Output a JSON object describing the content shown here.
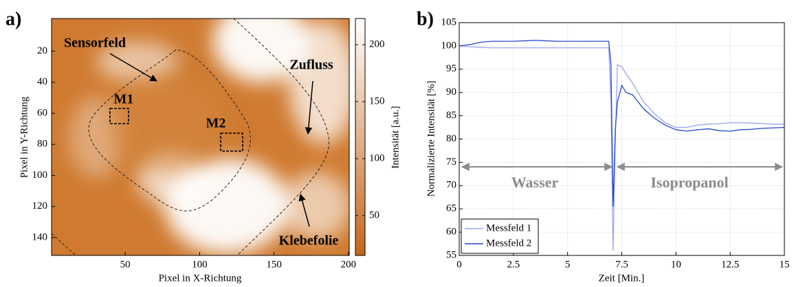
{
  "chart_data": [
    {
      "type": "image",
      "label": "a)",
      "xlabel": "Pixel in X-Richtung",
      "ylabel": "Pixel in Y-Richtung",
      "xlim": [
        0.5,
        200.5
      ],
      "ylim": [
        -1,
        151.5
      ],
      "y_reversed": true,
      "xticks": [
        50,
        100,
        150,
        200
      ],
      "yticks": [
        20,
        40,
        60,
        80,
        100,
        120,
        140
      ],
      "colorbar": {
        "label": "Intensität [a.u.]",
        "clim": [
          15,
          223
        ],
        "ticks": [
          50,
          100,
          150,
          200
        ],
        "colors": [
          "#c4661a",
          "#ffffff"
        ]
      },
      "annotations": [
        "Sensorfeld",
        "M1",
        "M2",
        "Zufluss",
        "Klebefolie"
      ]
    },
    {
      "type": "line",
      "label": "b)",
      "xlabel": "Zeit [Min.]",
      "ylabel": "Normalizierte Intensität [%]",
      "xlim": [
        0,
        15
      ],
      "xticks": [
        0,
        2.5,
        5,
        7.5,
        10,
        12.5,
        15
      ],
      "ylim": [
        55,
        105
      ],
      "yticks": [
        55,
        60,
        65,
        70,
        75,
        80,
        85,
        90,
        95,
        100,
        105
      ],
      "grid": true,
      "legend": "lower left",
      "annotations": [
        "Wasser",
        "Isopropanol"
      ],
      "x": [
        0,
        0.5,
        1,
        1.5,
        2,
        2.5,
        3,
        3.5,
        4,
        4.5,
        5,
        5.5,
        6,
        6.5,
        6.9,
        7,
        7.1,
        7.2,
        7.3,
        7.5,
        7.7,
        8,
        8.5,
        9,
        9.5,
        10,
        10.5,
        11,
        11.5,
        12,
        12.5,
        13,
        13.5,
        14,
        14.5,
        15
      ],
      "series": [
        {
          "name": "Messfeld 1",
          "color": "#9aa6ee",
          "values": [
            100,
            99.8,
            99.7,
            99.6,
            99.6,
            99.6,
            99.6,
            99.6,
            99.6,
            99.6,
            99.6,
            99.6,
            99.6,
            99.6,
            99.6,
            88,
            56,
            80,
            96,
            95.5,
            94,
            92,
            88,
            85.5,
            83.5,
            82.5,
            82.5,
            83,
            83.2,
            83.3,
            83.5,
            83.5,
            83.4,
            83.3,
            83.2,
            83.2
          ]
        },
        {
          "name": "Messfeld 2",
          "color": "#2447cc",
          "values": [
            100,
            100.3,
            100.8,
            101,
            101,
            101,
            101.1,
            101.2,
            101.1,
            101,
            101,
            101,
            101,
            101,
            101,
            96,
            65.5,
            82,
            88,
            91.5,
            90,
            89.5,
            86.5,
            84.5,
            83,
            82,
            81.7,
            82,
            82.2,
            81.8,
            81.7,
            82,
            82.1,
            82.3,
            82.4,
            82.5
          ]
        }
      ]
    }
  ]
}
